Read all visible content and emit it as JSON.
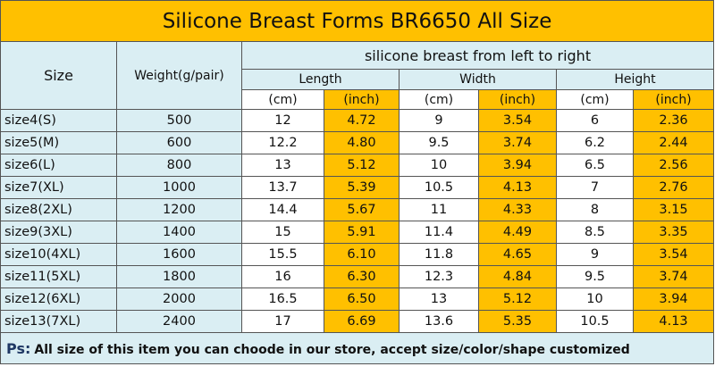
{
  "title": "Silicone Breast Forms BR6650 All Size",
  "table": {
    "header": {
      "size": "Size",
      "weight": "Weight(g/pair)",
      "group": "silicone breast from left to right",
      "dimensions": [
        "Length",
        "Width",
        "Height"
      ],
      "units": [
        "(cm)",
        "(inch)"
      ]
    },
    "rows": [
      [
        "size4(S)",
        "500",
        "12",
        "4.72",
        "9",
        "3.54",
        "6",
        "2.36"
      ],
      [
        "size5(M)",
        "600",
        "12.2",
        "4.80",
        "9.5",
        "3.74",
        "6.2",
        "2.44"
      ],
      [
        "size6(L)",
        "800",
        "13",
        "5.12",
        "10",
        "3.94",
        "6.5",
        "2.56"
      ],
      [
        "size7(XL)",
        "1000",
        "13.7",
        "5.39",
        "10.5",
        "4.13",
        "7",
        "2.76"
      ],
      [
        "size8(2XL)",
        "1200",
        "14.4",
        "5.67",
        "11",
        "4.33",
        "8",
        "3.15"
      ],
      [
        "size9(3XL)",
        "1400",
        "15",
        "5.91",
        "11.4",
        "4.49",
        "8.5",
        "3.35"
      ],
      [
        "size10(4XL)",
        "1600",
        "15.5",
        "6.10",
        "11.8",
        "4.65",
        "9",
        "3.54"
      ],
      [
        "size11(5XL)",
        "1800",
        "16",
        "6.30",
        "12.3",
        "4.84",
        "9.5",
        "3.74"
      ],
      [
        "size12(6XL)",
        "2000",
        "16.5",
        "6.50",
        "13",
        "5.12",
        "10",
        "3.94"
      ],
      [
        "size13(7XL)",
        "2400",
        "17",
        "6.69",
        "13.6",
        "5.35",
        "10.5",
        "4.13"
      ]
    ]
  },
  "footer": {
    "label": "Ps:",
    "text": "All size of this item you can choode in our store, accept size/color/shape customized"
  }
}
